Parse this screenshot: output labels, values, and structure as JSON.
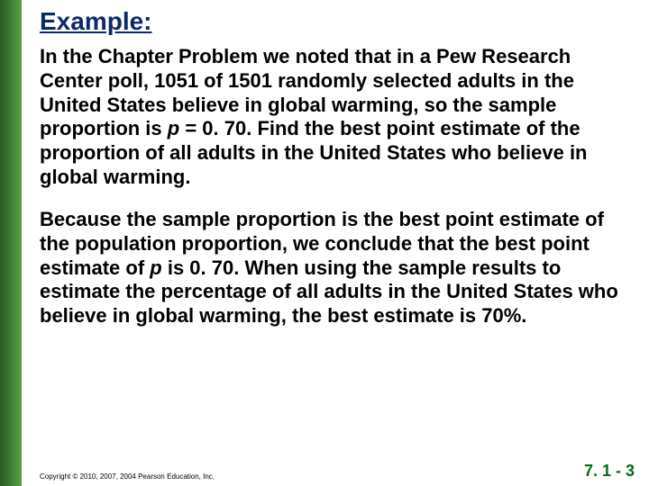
{
  "stripe_color_start": "#2a5a1f",
  "stripe_color_end": "#5aa04a",
  "title": {
    "text": "Example:",
    "color": "#0a2a6a",
    "fontsize": 28,
    "underline": true
  },
  "paragraphs": {
    "p1_pre": "In the Chapter Problem we noted that in a Pew Research Center poll, 1051 of 1501 randomly selected adults in the United States believe in global warming, so the sample proportion is ",
    "p1_var": "p",
    "p1_post": " = 0. 70. Find the best point estimate of the proportion of all adults in the United States who believe in global warming.",
    "p2_pre": "Because the sample proportion is the best point estimate of the population proportion, we conclude that the best point estimate of ",
    "p2_var": "p",
    "p2_post": " is 0. 70. When using the sample results to estimate the percentage of all adults in the United States who believe in global warming, the best estimate is 70%."
  },
  "body_style": {
    "fontsize": 22,
    "fontweight": "bold",
    "color": "#000000",
    "line_height": 1.22
  },
  "footer": {
    "copyright": "Copyright © 2010, 2007, 2004 Pearson Education, Inc.",
    "page_number": "7. 1 - 3",
    "page_number_color": "#0a6a1a"
  }
}
